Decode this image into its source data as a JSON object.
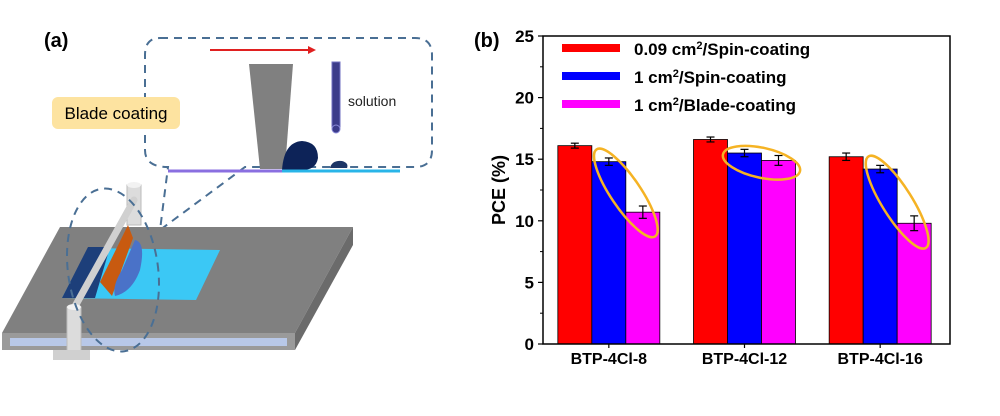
{
  "panel_a": {
    "label": "(a)",
    "callout_label": "Blade coating",
    "solution_label": "solution"
  },
  "chart_data": {
    "type": "bar",
    "panel_label": "(b)",
    "title": "",
    "xlabel": "",
    "ylabel": "PCE (%)",
    "ylim": [
      0,
      25
    ],
    "yticks": [
      0,
      5,
      10,
      15,
      20,
      25
    ],
    "grid": false,
    "legend_position": "top-left",
    "categories": [
      "BTP-4Cl-8",
      "BTP-4Cl-12",
      "BTP-4Cl-16"
    ],
    "series": [
      {
        "name_main": "0.09 cm",
        "name_sup": "2",
        "name_rest": "/Spin-coating",
        "name": "0.09 cm²/Spin-coating",
        "color": "#ff0000",
        "values": [
          16.1,
          16.6,
          15.2
        ],
        "errors": [
          0.2,
          0.2,
          0.3
        ]
      },
      {
        "name_main": "1 cm",
        "name_sup": "2",
        "name_rest": "/Spin-coating",
        "name": "1 cm²/Spin-coating",
        "color": "#0000ff",
        "values": [
          14.8,
          15.5,
          14.2
        ],
        "errors": [
          0.3,
          0.3,
          0.3
        ]
      },
      {
        "name_main": "1 cm",
        "name_sup": "2",
        "name_rest": "/Blade-coating",
        "name": "1 cm²/Blade-coating",
        "color": "#ff00ff",
        "values": [
          10.7,
          14.9,
          9.8
        ],
        "errors": [
          0.5,
          0.4,
          0.6
        ]
      }
    ],
    "highlight_color": "#f5b324"
  }
}
